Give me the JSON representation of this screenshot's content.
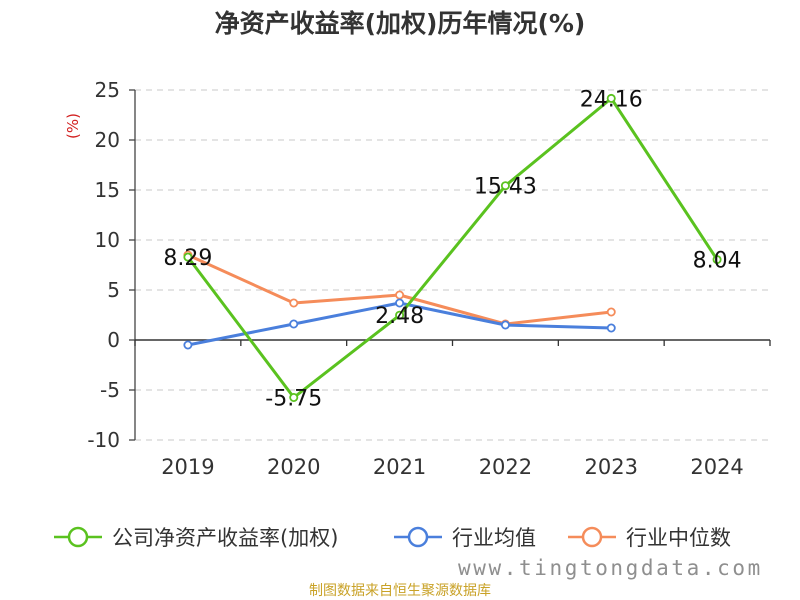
{
  "chart_data": {
    "type": "line",
    "title": "净资产收益率(加权)历年情况(%)",
    "ylabel": "(%)",
    "xlabel": "",
    "categories": [
      "2019",
      "2020",
      "2021",
      "2022",
      "2023",
      "2024"
    ],
    "ylim": [
      -10,
      25
    ],
    "yticks": [
      25,
      20,
      15,
      10,
      5,
      0,
      -5,
      -10
    ],
    "grid": true,
    "legend_position": "bottom",
    "series": [
      {
        "name": "公司净资产收益率(加权)",
        "color": "#5ac21f",
        "values": [
          8.29,
          -5.75,
          2.48,
          15.43,
          24.16,
          8.04
        ],
        "labels": [
          "8.29",
          "-5.75",
          "2.48",
          "15.43",
          "24.16",
          "8.04"
        ]
      },
      {
        "name": "行业均值",
        "color": "#4a7fdc",
        "values": [
          -0.5,
          1.6,
          3.7,
          1.5,
          1.2,
          null
        ],
        "labels": []
      },
      {
        "name": "行业中位数",
        "color": "#f58c5a",
        "values": [
          8.5,
          3.7,
          4.5,
          1.6,
          2.8,
          null
        ],
        "labels": []
      }
    ]
  },
  "source": "制图数据来自恒生聚源数据库",
  "watermark": "www.tingtongdata.com"
}
